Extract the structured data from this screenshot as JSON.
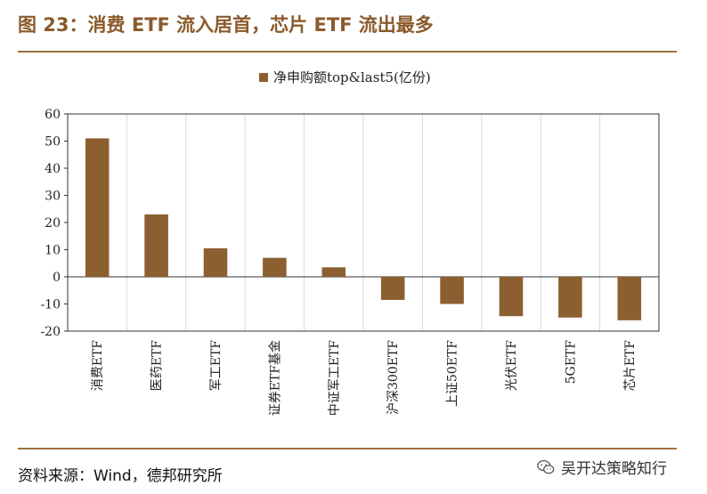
{
  "header": {
    "title": "图 23：消费 ETF 流入居首，芯片 ETF 流出最多"
  },
  "footer": {
    "source": "资料来源：Wind，德邦研究所",
    "watermark": "吴开达策略知行"
  },
  "colors": {
    "bar": "#8c5f30",
    "rule": "#a07040",
    "title": "#8a5a2b"
  },
  "chart_data": {
    "type": "bar",
    "title": "",
    "legend": "净申购额top&last5(亿份)",
    "legend_position": "top-center",
    "categories": [
      "消费ETF",
      "医药ETF",
      "军工ETF",
      "证券ETF基金",
      "中证军工ETF",
      "沪深300ETF",
      "上证50ETF",
      "光伏ETF",
      "5GETF",
      "芯片ETF"
    ],
    "values": [
      51,
      23,
      10.5,
      7,
      3.5,
      -8.5,
      -10,
      -14.5,
      -15,
      -16
    ],
    "ylim": [
      -20,
      60
    ],
    "yticks": [
      -20,
      -10,
      0,
      10,
      20,
      30,
      40,
      50,
      60
    ],
    "xlabel": "",
    "ylabel": "",
    "grid": "vertical"
  }
}
